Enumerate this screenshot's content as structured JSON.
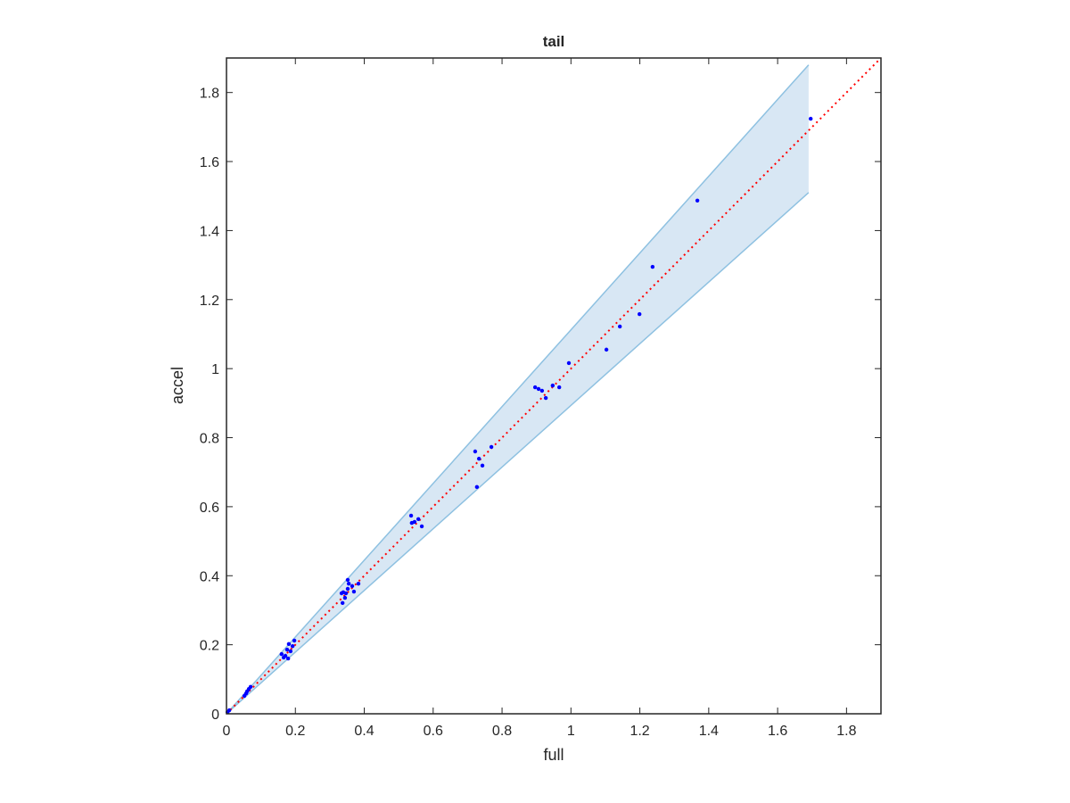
{
  "chart_data": {
    "type": "scatter",
    "title": "tail",
    "xlabel": "full",
    "ylabel": "accel",
    "xlim": [
      0,
      1.9
    ],
    "ylim": [
      0,
      1.9
    ],
    "xticks": [
      0,
      0.2,
      0.4,
      0.6,
      0.8,
      1,
      1.2,
      1.4,
      1.6,
      1.8
    ],
    "yticks": [
      0,
      0.2,
      0.4,
      0.6,
      0.8,
      1,
      1.2,
      1.4,
      1.6,
      1.8
    ],
    "grid": false,
    "band": {
      "x": [
        0,
        1.69
      ],
      "upper": [
        0,
        1.88
      ],
      "lower": [
        0,
        1.51
      ],
      "color": "#d8e7f4",
      "edge_color": "#8ec1e1"
    },
    "reference_line": {
      "x": [
        0,
        1.9
      ],
      "y": [
        0,
        1.9
      ],
      "color": "#ff0000",
      "dash": "dotted"
    },
    "points": {
      "color": "#0000ff",
      "x": [
        1.696,
        1.367,
        1.237,
        1.199,
        1.142,
        1.103,
        0.994,
        0.966,
        0.947,
        0.927,
        0.916,
        0.906,
        0.896,
        0.769,
        0.743,
        0.733,
        0.722,
        0.727,
        0.567,
        0.557,
        0.546,
        0.538,
        0.536,
        0.383,
        0.37,
        0.365,
        0.355,
        0.352,
        0.347,
        0.344,
        0.339,
        0.337,
        0.334,
        0.352,
        0.197,
        0.192,
        0.186,
        0.181,
        0.176,
        0.171,
        0.166,
        0.179,
        0.16,
        0.065,
        0.06,
        0.057,
        0.052,
        0.07,
        0.008,
        0.003
      ],
      "y": [
        1.724,
        1.487,
        1.295,
        1.158,
        1.122,
        1.055,
        1.016,
        0.946,
        0.951,
        0.915,
        0.936,
        0.941,
        0.946,
        0.773,
        0.719,
        0.739,
        0.76,
        0.657,
        0.543,
        0.564,
        0.556,
        0.553,
        0.574,
        0.377,
        0.354,
        0.37,
        0.377,
        0.362,
        0.349,
        0.336,
        0.352,
        0.321,
        0.349,
        0.388,
        0.212,
        0.196,
        0.181,
        0.202,
        0.186,
        0.168,
        0.163,
        0.16,
        0.173,
        0.072,
        0.065,
        0.059,
        0.052,
        0.078,
        0.01,
        0.005
      ]
    }
  }
}
